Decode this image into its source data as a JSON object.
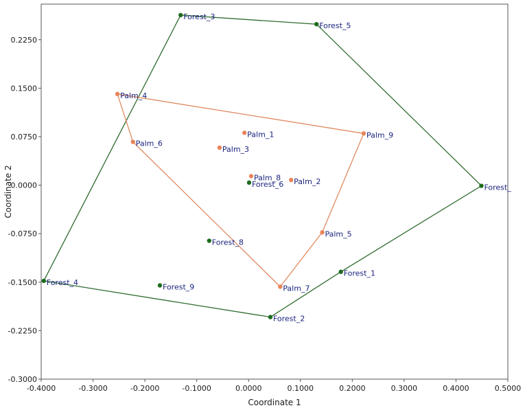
{
  "chart_data": {
    "type": "scatter",
    "xlabel": "Coordinate 1",
    "ylabel": "Coordinate 2",
    "xlim": [
      -0.4,
      0.5
    ],
    "ylim": [
      -0.3,
      0.28
    ],
    "x_ticks": [
      -0.4,
      -0.3,
      -0.2,
      -0.1,
      0.0,
      0.1,
      0.2,
      0.3,
      0.4,
      0.5
    ],
    "x_tick_labels": [
      "-0.4000",
      "-0.3000",
      "-0.2000",
      "-0.1000",
      "0.0000",
      "0.1000",
      "0.2000",
      "0.3000",
      "0.4000",
      "0.5000"
    ],
    "y_ticks": [
      -0.3,
      -0.225,
      -0.15,
      -0.075,
      0.0,
      0.075,
      0.15,
      0.225
    ],
    "y_tick_labels": [
      "-0.3000",
      "-0.2250",
      "-0.1500",
      "-0.0750",
      "0.0000",
      "0.0750",
      "0.1500",
      "0.2250"
    ],
    "grid": false,
    "series": [
      {
        "color": "#1e6b1e",
        "hull_color": "#2e6b2e",
        "hull": [
          "Forest_3",
          "Forest_5",
          "Forest_",
          "Forest_1",
          "Forest_2",
          "Forest_4"
        ],
        "points": [
          {
            "label": "Forest_3",
            "x": -0.131,
            "y": 0.263
          },
          {
            "label": "Forest_5",
            "x": 0.131,
            "y": 0.249
          },
          {
            "label": "Forest_",
            "x": 0.449,
            "y": -0.001
          },
          {
            "label": "Forest_1",
            "x": 0.178,
            "y": -0.134
          },
          {
            "label": "Forest_2",
            "x": 0.042,
            "y": -0.204
          },
          {
            "label": "Forest_4",
            "x": -0.395,
            "y": -0.148
          },
          {
            "label": "Forest_9",
            "x": -0.171,
            "y": -0.155
          },
          {
            "label": "Forest_8",
            "x": -0.076,
            "y": -0.086
          },
          {
            "label": "Forest_6",
            "x": 0.001,
            "y": 0.004
          }
        ]
      },
      {
        "color": "#e8845a",
        "hull_color": "#e08a62",
        "hull": [
          "Palm_4",
          "Palm_9",
          "Palm_5",
          "Palm_7",
          "Palm_6"
        ],
        "points": [
          {
            "label": "Palm_4",
            "x": -0.253,
            "y": 0.141
          },
          {
            "label": "Palm_9",
            "x": 0.222,
            "y": 0.08
          },
          {
            "label": "Palm_5",
            "x": 0.142,
            "y": -0.073
          },
          {
            "label": "Palm_7",
            "x": 0.061,
            "y": -0.157
          },
          {
            "label": "Palm_6",
            "x": -0.223,
            "y": 0.067
          },
          {
            "label": "Palm_1",
            "x": -0.008,
            "y": 0.081
          },
          {
            "label": "Palm_3",
            "x": -0.056,
            "y": 0.058
          },
          {
            "label": "Palm_8",
            "x": 0.005,
            "y": 0.014
          },
          {
            "label": "Palm_2",
            "x": 0.082,
            "y": 0.008
          }
        ]
      }
    ]
  }
}
